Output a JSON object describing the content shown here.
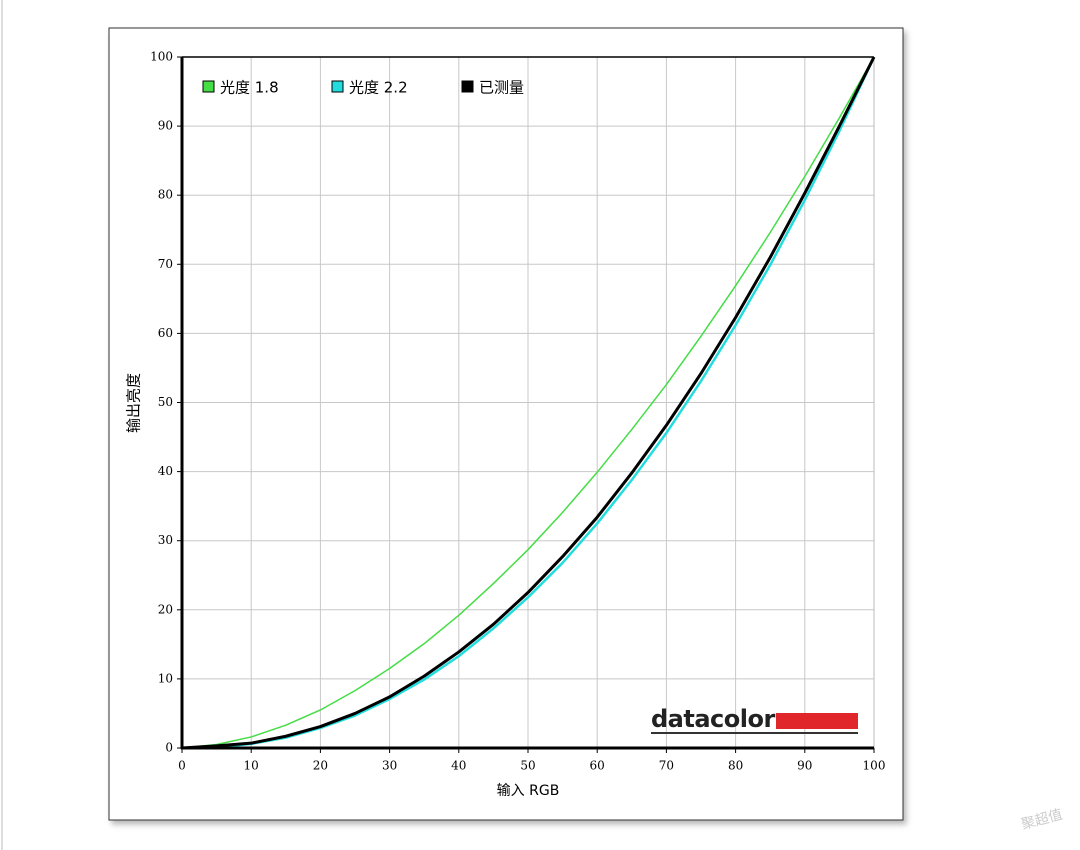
{
  "chart_data": {
    "type": "line",
    "xlabel": "输入 RGB",
    "ylabel": "输出亮度",
    "x": [
      0,
      5,
      10,
      15,
      20,
      25,
      30,
      35,
      40,
      45,
      50,
      55,
      60,
      65,
      70,
      75,
      80,
      85,
      90,
      95,
      100
    ],
    "series": [
      {
        "name": "光度 1.8",
        "color": "#44dd44",
        "values": [
          0,
          0.5,
          1.6,
          3.3,
          5.5,
          8.3,
          11.5,
          15.1,
          19.2,
          23.8,
          28.7,
          34.1,
          39.9,
          46.1,
          52.6,
          59.6,
          66.9,
          74.6,
          82.7,
          91.2,
          100
        ]
      },
      {
        "name": "光度 2.2",
        "color": "#22dddd",
        "values": [
          0,
          0.1,
          0.6,
          1.5,
          2.9,
          4.7,
          7.1,
          9.9,
          13.3,
          17.3,
          21.8,
          26.8,
          32.5,
          38.8,
          45.6,
          53.1,
          61.2,
          69.9,
          79.3,
          89.3,
          100
        ]
      },
      {
        "name": "已测量",
        "color": "#000000",
        "values": [
          0,
          0.3,
          0.7,
          1.7,
          3.1,
          5.0,
          7.4,
          10.4,
          13.9,
          17.9,
          22.5,
          27.7,
          33.4,
          39.8,
          46.7,
          54.2,
          62.3,
          71.0,
          80.3,
          90.0,
          100
        ]
      }
    ],
    "xlim": [
      0,
      100
    ],
    "ylim": [
      0,
      100
    ],
    "xticks": [
      0,
      10,
      20,
      30,
      40,
      50,
      60,
      70,
      80,
      90,
      100
    ],
    "yticks": [
      0,
      10,
      20,
      30,
      40,
      50,
      60,
      70,
      80,
      90,
      100
    ],
    "grid": true,
    "legend": "top-left",
    "logo": "datacolor",
    "watermark": "聚超值"
  }
}
